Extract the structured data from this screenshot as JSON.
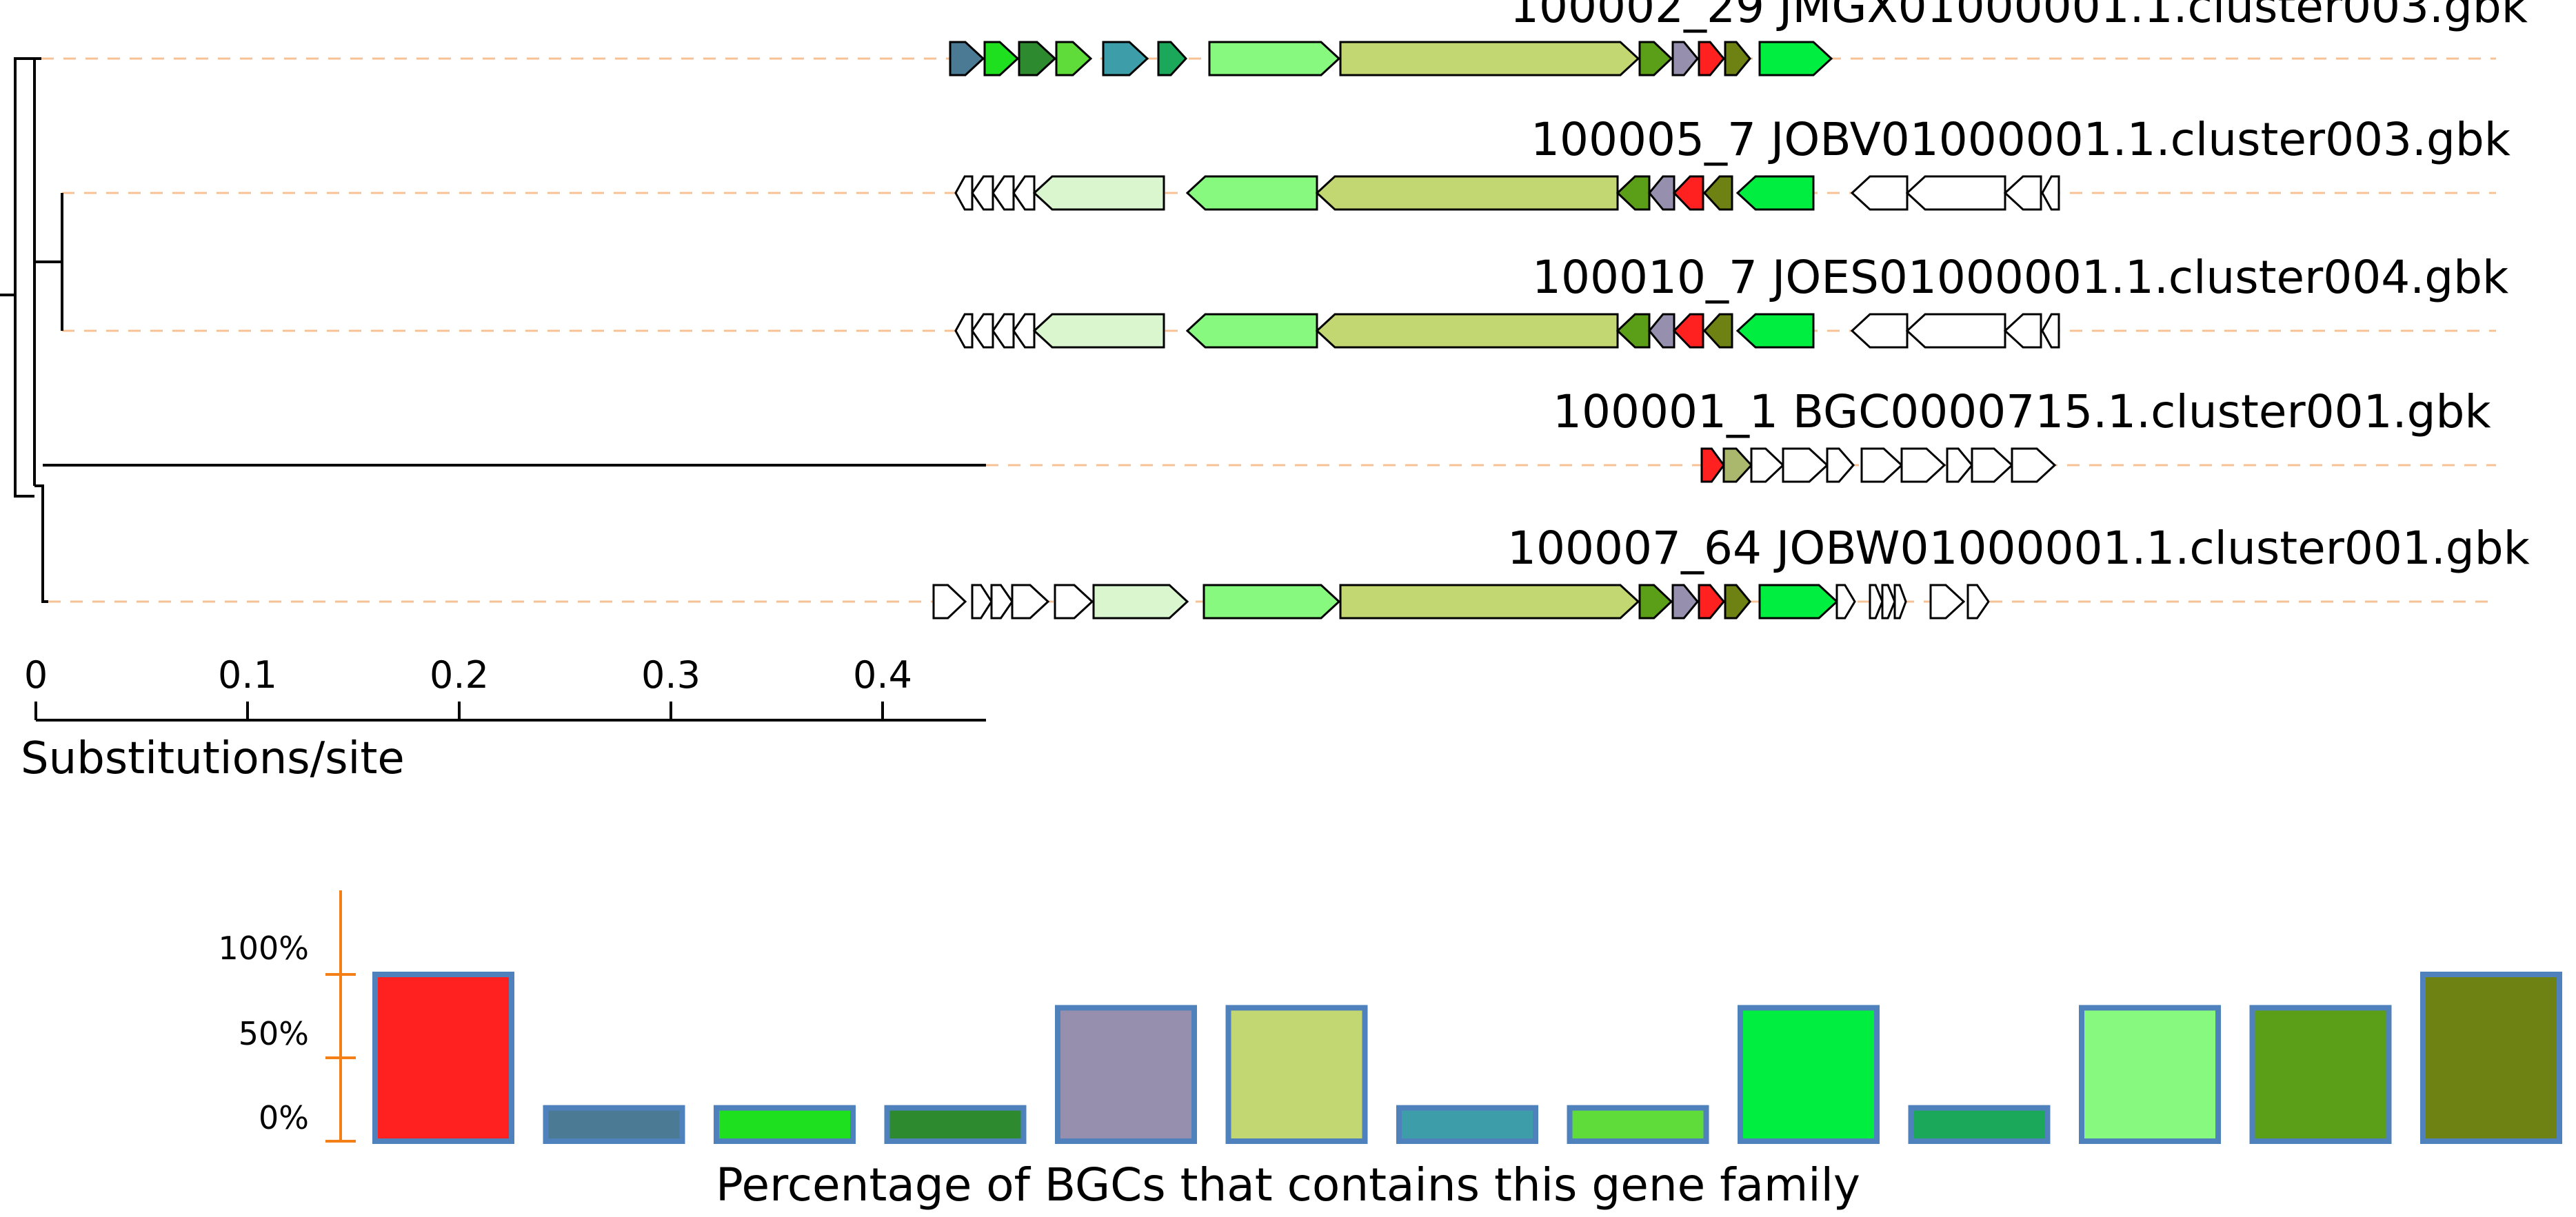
{
  "tree": {
    "axis_label": "Substitutions/site",
    "ticks": [
      "0",
      "0.1",
      "0.2",
      "0.3",
      "0.4"
    ],
    "tick_values": [
      0,
      0.1,
      0.2,
      0.3,
      0.4
    ]
  },
  "bgcs": [
    {
      "label": "100002_29 JMGX01000001.1.cluster003.gbk",
      "genes": [
        {
          "fam": 1,
          "dir": "+"
        },
        {
          "fam": 2,
          "dir": "+"
        },
        {
          "fam": 3,
          "dir": "+"
        },
        {
          "fam": 7,
          "dir": "+"
        },
        {
          "fam": 6,
          "dir": "+"
        },
        {
          "fam": 9,
          "dir": "+"
        },
        {
          "fam": 10,
          "dir": "+"
        },
        {
          "fam": 5,
          "dir": "+"
        },
        {
          "fam": 11,
          "dir": "+"
        },
        {
          "fam": 4,
          "dir": "+"
        },
        {
          "fam": 0,
          "dir": "+"
        },
        {
          "fam": 12,
          "dir": "+"
        },
        {
          "fam": 8,
          "dir": "+"
        }
      ]
    },
    {
      "label": "100005_7 JOBV01000001.1.cluster003.gbk",
      "genes": [
        {
          "fam": null,
          "dir": "-"
        },
        {
          "fam": null,
          "dir": "-"
        },
        {
          "fam": null,
          "dir": "-"
        },
        {
          "fam": null,
          "dir": "-"
        },
        {
          "fam": "pale",
          "dir": "-"
        },
        {
          "fam": 10,
          "dir": "-"
        },
        {
          "fam": 5,
          "dir": "-"
        },
        {
          "fam": 11,
          "dir": "-"
        },
        {
          "fam": 4,
          "dir": "-"
        },
        {
          "fam": 0,
          "dir": "-"
        },
        {
          "fam": 12,
          "dir": "-"
        },
        {
          "fam": 8,
          "dir": "-"
        },
        {
          "fam": null,
          "dir": "-"
        },
        {
          "fam": null,
          "dir": "-"
        },
        {
          "fam": null,
          "dir": "-"
        },
        {
          "fam": null,
          "dir": "-"
        }
      ]
    },
    {
      "label": "100010_7 JOES01000001.1.cluster004.gbk",
      "genes": [
        {
          "fam": null,
          "dir": "-"
        },
        {
          "fam": null,
          "dir": "-"
        },
        {
          "fam": null,
          "dir": "-"
        },
        {
          "fam": null,
          "dir": "-"
        },
        {
          "fam": "pale",
          "dir": "-"
        },
        {
          "fam": 10,
          "dir": "-"
        },
        {
          "fam": 5,
          "dir": "-"
        },
        {
          "fam": 11,
          "dir": "-"
        },
        {
          "fam": 4,
          "dir": "-"
        },
        {
          "fam": 0,
          "dir": "-"
        },
        {
          "fam": 12,
          "dir": "-"
        },
        {
          "fam": 8,
          "dir": "-"
        },
        {
          "fam": null,
          "dir": "-"
        },
        {
          "fam": null,
          "dir": "-"
        },
        {
          "fam": null,
          "dir": "-"
        },
        {
          "fam": null,
          "dir": "-"
        }
      ]
    },
    {
      "label": "100001_1 BGC0000715.1.cluster001.gbk",
      "genes": [
        {
          "fam": 0,
          "dir": "+"
        },
        {
          "fam": "olive_light",
          "dir": "+"
        },
        {
          "fam": null,
          "dir": "+"
        },
        {
          "fam": null,
          "dir": "+"
        },
        {
          "fam": null,
          "dir": "+"
        },
        {
          "fam": null,
          "dir": "+"
        },
        {
          "fam": null,
          "dir": "+"
        },
        {
          "fam": null,
          "dir": "+"
        },
        {
          "fam": null,
          "dir": "+"
        },
        {
          "fam": null,
          "dir": "+"
        }
      ]
    },
    {
      "label": "100007_64 JOBW01000001.1.cluster001.gbk",
      "genes": [
        {
          "fam": null,
          "dir": "+"
        },
        {
          "fam": null,
          "dir": "+"
        },
        {
          "fam": null,
          "dir": "+"
        },
        {
          "fam": null,
          "dir": "+"
        },
        {
          "fam": null,
          "dir": "+"
        },
        {
          "fam": "pale",
          "dir": "+"
        },
        {
          "fam": 10,
          "dir": "+"
        },
        {
          "fam": 5,
          "dir": "+"
        },
        {
          "fam": 11,
          "dir": "+"
        },
        {
          "fam": 4,
          "dir": "+"
        },
        {
          "fam": 0,
          "dir": "+"
        },
        {
          "fam": 12,
          "dir": "+"
        },
        {
          "fam": 8,
          "dir": "+"
        },
        {
          "fam": null,
          "dir": "+"
        },
        {
          "fam": null,
          "dir": "+"
        },
        {
          "fam": null,
          "dir": "+"
        },
        {
          "fam": null,
          "dir": "+"
        },
        {
          "fam": null,
          "dir": "+"
        },
        {
          "fam": null,
          "dir": "+"
        }
      ]
    }
  ],
  "chart_data": {
    "type": "bar",
    "xlabel": "Percentage of BGCs that contains this gene family",
    "y_ticks": [
      "100%",
      "50%",
      "0%"
    ],
    "ylim": [
      0,
      100
    ],
    "values": [
      100,
      20,
      20,
      20,
      80,
      80,
      20,
      20,
      80,
      20,
      80,
      80,
      100
    ],
    "colors": [
      "#ff2020",
      "#4a7a94",
      "#1ee01e",
      "#2e8a2e",
      "#9690ae",
      "#c2d672",
      "#3d9eaa",
      "#5fdc3a",
      "#00ee3f",
      "#1ca85a",
      "#88f97f",
      "#5b9e18",
      "#6e8213"
    ],
    "border_color": "#4f81bd"
  },
  "colors": {
    "tree_line": "#000000",
    "guide_dash": "#f7c196",
    "bar_axis": "#f57f17",
    "no_family": "#ffffff",
    "pale": "#d9f6cf",
    "olive_light": "#a9b86c"
  }
}
